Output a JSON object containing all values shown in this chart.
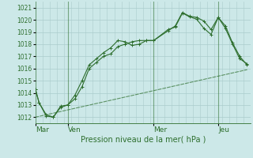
{
  "background_color": "#cce8e8",
  "grid_color": "#aacccc",
  "line_color": "#2d6e2d",
  "xlabel": "Pression niveau de la mer( hPa )",
  "ylabel_values": [
    1012,
    1013,
    1014,
    1015,
    1016,
    1017,
    1018,
    1019,
    1020,
    1021
  ],
  "ylim": [
    1011.5,
    1021.5
  ],
  "xlim": [
    0,
    60
  ],
  "day_vline_x": [
    0,
    9,
    33,
    51
  ],
  "day_labels": [
    "Mar",
    "Ven",
    "Mer",
    "Jeu"
  ],
  "line1_x": [
    0,
    1,
    3,
    5,
    7,
    9,
    11,
    13,
    15,
    17,
    19,
    21,
    23,
    25,
    27,
    29,
    31,
    33,
    37,
    39,
    41,
    43,
    45,
    47,
    49,
    51,
    53,
    55,
    57,
    59
  ],
  "line1_y": [
    1014.3,
    1013.2,
    1012.1,
    1012.0,
    1012.8,
    1013.0,
    1013.8,
    1015.0,
    1016.3,
    1016.8,
    1017.3,
    1017.7,
    1018.3,
    1018.2,
    1017.9,
    1018.0,
    1018.3,
    1018.3,
    1019.2,
    1019.4,
    1020.55,
    1020.25,
    1020.05,
    1019.3,
    1018.8,
    1020.2,
    1019.5,
    1018.1,
    1017.0,
    1016.3
  ],
  "line2_x": [
    0,
    1,
    3,
    5,
    7,
    9,
    11,
    13,
    15,
    17,
    19,
    21,
    23,
    25,
    27,
    29,
    31,
    33,
    37,
    39,
    41,
    43,
    45,
    47,
    49,
    51,
    53,
    55,
    57,
    59
  ],
  "line2_y": [
    1014.3,
    1013.2,
    1012.2,
    1012.0,
    1012.9,
    1013.0,
    1013.5,
    1014.5,
    1016.0,
    1016.5,
    1017.0,
    1017.2,
    1017.8,
    1018.0,
    1018.2,
    1018.3,
    1018.3,
    1018.3,
    1019.1,
    1019.5,
    1020.6,
    1020.3,
    1020.2,
    1019.9,
    1019.2,
    1020.2,
    1019.3,
    1018.0,
    1016.8,
    1016.4
  ],
  "line3_x": [
    0,
    59
  ],
  "line3_y": [
    1012.0,
    1015.9
  ],
  "num_minor_vlines": 60,
  "marker_size": 2.5,
  "linewidth": 0.8
}
